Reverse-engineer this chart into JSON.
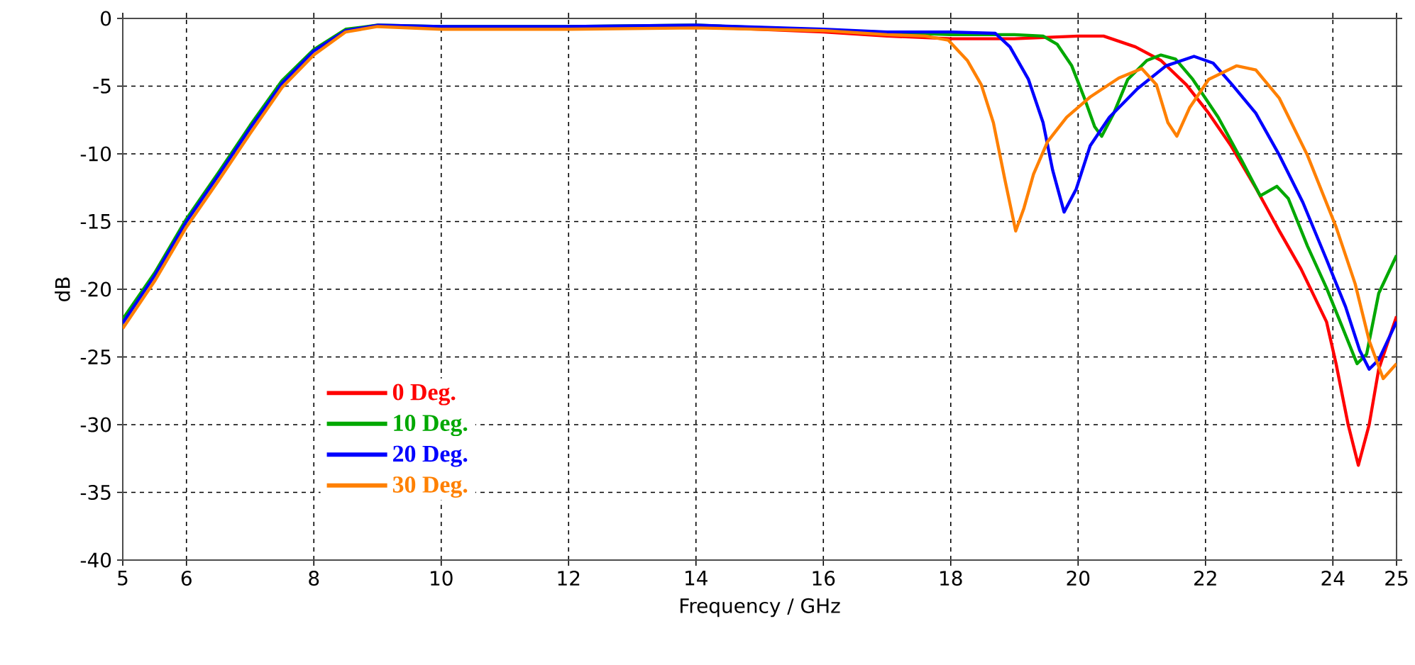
{
  "chart_data": {
    "type": "line",
    "xlabel": "Frequency / GHz",
    "ylabel": "dB",
    "xlim": [
      5,
      25
    ],
    "ylim": [
      -40,
      0
    ],
    "xticks": [
      5,
      6,
      8,
      10,
      12,
      14,
      16,
      18,
      20,
      22,
      24,
      25
    ],
    "yticks": [
      -40,
      -35,
      -30,
      -25,
      -20,
      -15,
      -10,
      -5,
      0
    ],
    "grid": true,
    "legend": "bottom left",
    "marker": "none",
    "line_style": "solid",
    "series": [
      {
        "name": "0 Deg.",
        "color": "#ff0000",
        "x": [
          12,
          14,
          16,
          17,
          18,
          19,
          20,
          20.4,
          20.9,
          21.3,
          21.7,
          22.05,
          22.4,
          22.8,
          23.16,
          23.5,
          23.9,
          24.05,
          24.24,
          24.4,
          24.57,
          24.72,
          25
        ],
        "values": [
          -0.6,
          -0.6,
          -1.0,
          -1.3,
          -1.5,
          -1.5,
          -1.3,
          -1.3,
          -2.1,
          -3.1,
          -4.9,
          -7.0,
          -9.4,
          -12.6,
          -15.7,
          -18.5,
          -22.4,
          -25.5,
          -30.0,
          -33.0,
          -30.0,
          -25.9,
          -22.0
        ]
      },
      {
        "name": "10 Deg.",
        "color": "#00a800",
        "x": [
          5,
          5.5,
          6,
          6.5,
          7,
          7.5,
          8,
          8.5,
          9,
          10,
          12,
          14,
          18,
          19,
          19.45,
          19.67,
          19.9,
          20.1,
          20.26,
          20.37,
          20.56,
          20.78,
          21.08,
          21.3,
          21.53,
          21.8,
          22.2,
          22.57,
          22.86,
          23.12,
          23.3,
          23.6,
          23.9,
          24.2,
          24.38,
          24.53,
          24.72,
          25
        ],
        "values": [
          -22.2,
          -18.8,
          -14.8,
          -11.4,
          -7.9,
          -4.6,
          -2.3,
          -0.8,
          -0.5,
          -0.6,
          -0.6,
          -0.5,
          -1.2,
          -1.2,
          -1.3,
          -1.9,
          -3.5,
          -5.9,
          -8.0,
          -8.7,
          -7.0,
          -4.5,
          -3.1,
          -2.7,
          -3.0,
          -4.5,
          -7.3,
          -10.5,
          -13.1,
          -12.4,
          -13.3,
          -16.8,
          -19.9,
          -23.4,
          -25.5,
          -24.8,
          -20.3,
          -17.5
        ]
      },
      {
        "name": "20 Deg.",
        "color": "#0000ff",
        "x": [
          5,
          5.5,
          6,
          6.5,
          7,
          7.5,
          8,
          8.5,
          9,
          10,
          12,
          14,
          16,
          17,
          18,
          18.7,
          18.93,
          19.22,
          19.45,
          19.6,
          19.78,
          19.97,
          20.19,
          20.49,
          20.93,
          21.38,
          21.82,
          22.12,
          22.42,
          22.79,
          23.16,
          23.53,
          23.9,
          24.2,
          24.42,
          24.57,
          24.72,
          25
        ],
        "values": [
          -22.5,
          -19.0,
          -15.0,
          -11.6,
          -8.1,
          -4.8,
          -2.4,
          -0.9,
          -0.5,
          -0.6,
          -0.6,
          -0.5,
          -0.8,
          -1.0,
          -1.0,
          -1.1,
          -2.1,
          -4.5,
          -7.7,
          -11.2,
          -14.3,
          -12.6,
          -9.4,
          -7.3,
          -5.2,
          -3.5,
          -2.8,
          -3.3,
          -4.9,
          -7.0,
          -10.1,
          -13.6,
          -17.8,
          -21.3,
          -24.5,
          -25.9,
          -25.2,
          -22.4
        ]
      },
      {
        "name": "30 Deg.",
        "color": "#ff8000",
        "x": [
          5,
          5.5,
          6,
          6.5,
          7,
          7.5,
          8,
          8.5,
          9,
          10,
          12,
          14,
          16,
          17,
          17.6,
          17.96,
          18.26,
          18.48,
          18.67,
          18.85,
          19.02,
          19.15,
          19.3,
          19.52,
          19.82,
          20.19,
          20.64,
          21.0,
          21.23,
          21.41,
          21.55,
          21.75,
          22.05,
          22.49,
          22.79,
          23.16,
          23.6,
          24.05,
          24.35,
          24.57,
          24.79,
          25
        ],
        "values": [
          -22.9,
          -19.4,
          -15.4,
          -12.0,
          -8.5,
          -5.1,
          -2.7,
          -1.0,
          -0.6,
          -0.8,
          -0.8,
          -0.7,
          -0.9,
          -1.2,
          -1.3,
          -1.6,
          -3.1,
          -4.9,
          -7.7,
          -11.9,
          -15.7,
          -14.0,
          -11.5,
          -9.1,
          -7.3,
          -5.8,
          -4.4,
          -3.7,
          -4.9,
          -7.7,
          -8.7,
          -6.6,
          -4.5,
          -3.5,
          -3.8,
          -5.9,
          -10.1,
          -15.4,
          -19.6,
          -23.8,
          -26.6,
          -25.5
        ]
      }
    ]
  }
}
